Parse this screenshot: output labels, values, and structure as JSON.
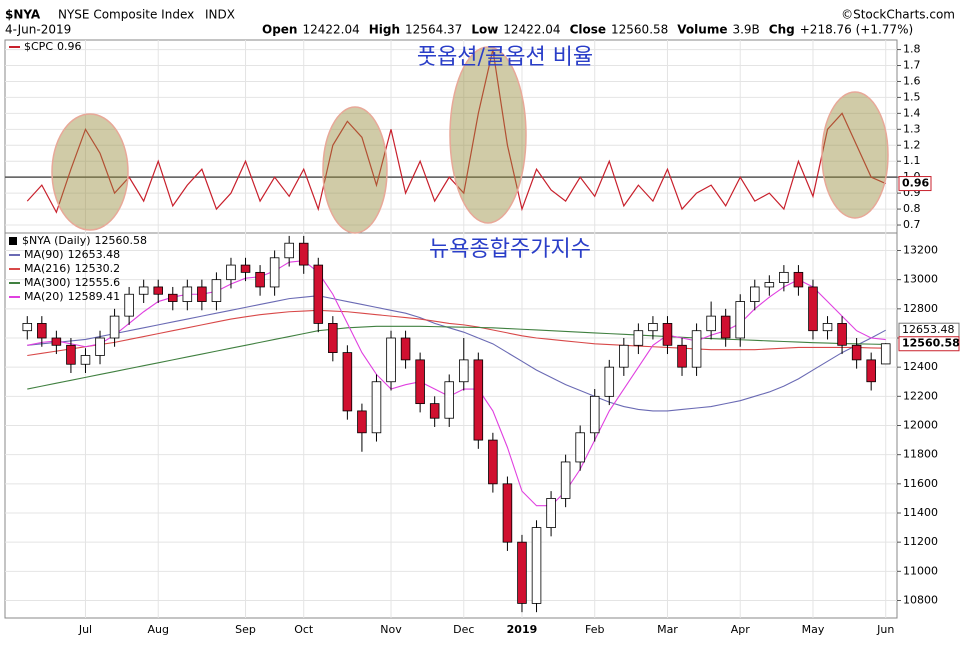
{
  "header": {
    "symbol": "$NYA",
    "name": "NYSE Composite Index",
    "exchange": "INDX",
    "date": "4-Jun-2019",
    "quote": [
      {
        "label": "Open",
        "value": "12422.04"
      },
      {
        "label": "High",
        "value": "12564.37"
      },
      {
        "label": "Low",
        "value": "12422.04"
      },
      {
        "label": "Close",
        "value": "12560.58"
      },
      {
        "label": "Volume",
        "value": "3.9B"
      },
      {
        "label": "Chg",
        "value": "+218.76 (+1.77%)"
      }
    ],
    "source": "©StockCharts.com"
  },
  "chart_data": [
    {
      "type": "line",
      "title": "풋옵션/콜옵션 비율",
      "name": "$CPC",
      "color": "#c8202c",
      "reference_line": 1,
      "categories": [
        null,
        null,
        null,
        null,
        "Jul",
        null,
        null,
        null,
        null,
        "Aug",
        null,
        null,
        null,
        null,
        null,
        "Sep",
        null,
        null,
        null,
        "Oct",
        null,
        null,
        null,
        null,
        null,
        "Nov",
        null,
        null,
        null,
        null,
        "Dec",
        null,
        null,
        null,
        "2019",
        null,
        null,
        null,
        null,
        "Feb",
        null,
        null,
        null,
        null,
        "Mar",
        null,
        null,
        null,
        null,
        "Apr",
        null,
        null,
        null,
        null,
        "May",
        null,
        null,
        null,
        null,
        "Jun"
      ],
      "values": [
        0.85,
        0.95,
        0.78,
        1.05,
        1.3,
        1.15,
        0.9,
        1.0,
        0.85,
        1.1,
        0.82,
        0.95,
        1.05,
        0.8,
        0.9,
        1.1,
        0.85,
        1.0,
        0.88,
        1.05,
        0.8,
        1.2,
        1.35,
        1.25,
        0.95,
        1.3,
        0.9,
        1.1,
        0.85,
        1.0,
        0.9,
        1.4,
        1.8,
        1.2,
        0.8,
        1.05,
        0.92,
        0.85,
        1.0,
        0.88,
        1.1,
        0.82,
        0.95,
        0.85,
        1.05,
        0.8,
        0.9,
        0.95,
        0.82,
        1.0,
        0.85,
        0.9,
        0.8,
        1.1,
        0.88,
        1.3,
        1.4,
        1.2,
        1.0,
        0.96
      ],
      "ylim": [
        0.65,
        1.86
      ],
      "yticks": [
        0.7,
        0.8,
        0.9,
        {
          "value": 1,
          "label": "1.0"
        },
        1.1,
        1.2,
        1.3,
        1.4,
        1.5,
        1.6,
        1.7,
        1.8
      ]
    },
    {
      "type": "candlestick",
      "title": "뉴욕종합주가지수",
      "name": "$NYA (Daily)",
      "up_color": "#ffffff",
      "down_color": "#d01030",
      "categories": [
        null,
        null,
        null,
        null,
        "Jul",
        null,
        null,
        null,
        null,
        "Aug",
        null,
        null,
        null,
        null,
        null,
        "Sep",
        null,
        null,
        null,
        "Oct",
        null,
        null,
        null,
        null,
        null,
        "Nov",
        null,
        null,
        null,
        null,
        "Dec",
        null,
        null,
        null,
        "2019",
        null,
        null,
        null,
        null,
        "Feb",
        null,
        null,
        null,
        null,
        "Mar",
        null,
        null,
        null,
        null,
        "Apr",
        null,
        null,
        null,
        null,
        "May",
        null,
        null,
        null,
        null,
        "Jun"
      ],
      "open": [
        12650,
        12700,
        12600,
        12550,
        12420,
        12480,
        12600,
        12750,
        12900,
        12950,
        12900,
        12850,
        12950,
        12850,
        13000,
        13100,
        13050,
        12950,
        13150,
        13250,
        13100,
        12700,
        12500,
        12100,
        11950,
        12300,
        12600,
        12450,
        12150,
        12050,
        12300,
        12450,
        11900,
        11600,
        11200,
        10780,
        11300,
        11500,
        11750,
        11950,
        12200,
        12400,
        12550,
        12650,
        12700,
        12550,
        12400,
        12650,
        12750,
        12600,
        12850,
        12950,
        12980,
        13050,
        12950,
        12650,
        12700,
        12550,
        12450,
        12422.04
      ],
      "high": [
        12750,
        12750,
        12650,
        12600,
        12530,
        12650,
        12800,
        12950,
        13000,
        13000,
        12950,
        13000,
        13000,
        13050,
        13150,
        13150,
        13100,
        13200,
        13300,
        13300,
        13150,
        12750,
        12550,
        12150,
        12350,
        12650,
        12650,
        12500,
        12200,
        12350,
        12600,
        12500,
        11950,
        11650,
        11250,
        11350,
        11550,
        11800,
        12000,
        12250,
        12450,
        12600,
        12700,
        12750,
        12750,
        12600,
        12700,
        12850,
        12800,
        12900,
        13000,
        13030,
        13100,
        13100,
        13000,
        12750,
        12750,
        12600,
        12500,
        12564.37
      ],
      "low": [
        12590,
        12540,
        12490,
        12360,
        12360,
        12420,
        12540,
        12690,
        12840,
        12840,
        12790,
        12790,
        12790,
        12790,
        12940,
        12990,
        12890,
        12890,
        13090,
        13040,
        12640,
        12440,
        12040,
        11820,
        11890,
        12240,
        12390,
        12090,
        11990,
        11990,
        12240,
        11840,
        11540,
        11140,
        10720,
        10720,
        11240,
        11440,
        11690,
        11890,
        12140,
        12340,
        12490,
        12590,
        12490,
        12340,
        12340,
        12590,
        12540,
        12540,
        12790,
        12890,
        12920,
        12890,
        12590,
        12590,
        12490,
        12390,
        12240,
        12422.04
      ],
      "close": [
        12700,
        12600,
        12550,
        12420,
        12480,
        12600,
        12750,
        12900,
        12950,
        12900,
        12850,
        12950,
        12850,
        13000,
        13100,
        13050,
        12950,
        13150,
        13250,
        13100,
        12700,
        12500,
        12100,
        11950,
        12300,
        12600,
        12450,
        12150,
        12050,
        12300,
        12450,
        11900,
        11600,
        11200,
        10780,
        11300,
        11500,
        11750,
        11950,
        12200,
        12400,
        12550,
        12650,
        12700,
        12550,
        12400,
        12650,
        12750,
        12600,
        12850,
        12950,
        12980,
        13050,
        12950,
        12650,
        12700,
        12550,
        12450,
        12300,
        12560.58
      ],
      "series": [
        {
          "name": "MA(90)",
          "color": "#6a6ab4",
          "values": [
            12550,
            12560,
            12570,
            12580,
            12590,
            12610,
            12630,
            12650,
            12670,
            12690,
            12710,
            12730,
            12750,
            12770,
            12790,
            12810,
            12830,
            12850,
            12870,
            12880,
            12890,
            12870,
            12850,
            12830,
            12810,
            12790,
            12770,
            12740,
            12700,
            12670,
            12640,
            12600,
            12560,
            12500,
            12440,
            12380,
            12330,
            12280,
            12240,
            12200,
            12160,
            12130,
            12110,
            12100,
            12100,
            12110,
            12120,
            12130,
            12150,
            12170,
            12200,
            12230,
            12270,
            12320,
            12380,
            12440,
            12500,
            12550,
            12600,
            12653.48
          ]
        },
        {
          "name": "MA(216)",
          "color": "#d84848",
          "values": [
            12480,
            12495,
            12510,
            12525,
            12540,
            12555,
            12570,
            12590,
            12610,
            12630,
            12650,
            12670,
            12690,
            12710,
            12730,
            12745,
            12760,
            12770,
            12780,
            12785,
            12790,
            12785,
            12780,
            12770,
            12760,
            12750,
            12740,
            12730,
            12715,
            12700,
            12690,
            12675,
            12655,
            12635,
            12615,
            12600,
            12590,
            12580,
            12570,
            12560,
            12555,
            12550,
            12545,
            12540,
            12535,
            12530,
            12525,
            12520,
            12520,
            12520,
            12520,
            12525,
            12530,
            12535,
            12535,
            12535,
            12535,
            12535,
            12532,
            12530.2
          ]
        },
        {
          "name": "MA(300)",
          "color": "#408040",
          "values": [
            12250,
            12270,
            12290,
            12310,
            12330,
            12350,
            12370,
            12390,
            12410,
            12430,
            12450,
            12470,
            12490,
            12510,
            12530,
            12550,
            12570,
            12590,
            12610,
            12630,
            12650,
            12660,
            12670,
            12675,
            12680,
            12680,
            12680,
            12680,
            12678,
            12676,
            12674,
            12672,
            12670,
            12665,
            12660,
            12655,
            12650,
            12645,
            12640,
            12635,
            12630,
            12625,
            12620,
            12615,
            12610,
            12605,
            12600,
            12596,
            12592,
            12588,
            12584,
            12580,
            12576,
            12572,
            12568,
            12565,
            12562,
            12560,
            12558,
            12555.6
          ]
        },
        {
          "name": "MA(20)",
          "color": "#e040e0",
          "values": [
            12550,
            12570,
            12580,
            12560,
            12540,
            12560,
            12620,
            12700,
            12780,
            12850,
            12880,
            12900,
            12900,
            12920,
            12970,
            13010,
            13020,
            13060,
            13120,
            13130,
            13050,
            12900,
            12700,
            12500,
            12350,
            12250,
            12280,
            12300,
            12250,
            12200,
            12250,
            12250,
            12100,
            11850,
            11550,
            11450,
            11450,
            11550,
            11700,
            11900,
            12100,
            12250,
            12400,
            12550,
            12620,
            12600,
            12580,
            12620,
            12650,
            12700,
            12800,
            12880,
            12950,
            13000,
            12950,
            12850,
            12750,
            12650,
            12600,
            12589.41
          ]
        }
      ],
      "ylim": [
        10680,
        13320
      ],
      "yticks": [
        10800,
        11000,
        11200,
        11400,
        11600,
        11800,
        12000,
        12200,
        12400,
        12600,
        12800,
        13000,
        13200
      ]
    }
  ]
}
